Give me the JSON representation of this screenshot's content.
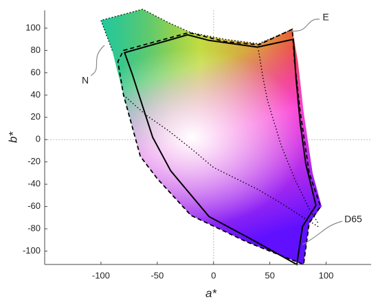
{
  "chart_data": {
    "type": "line",
    "x_label": "a*",
    "y_label": "b*",
    "xlim": [
      -150,
      140
    ],
    "ylim": [
      -112,
      116
    ],
    "xticks": [
      -100,
      -50,
      0,
      50,
      100
    ],
    "yticks": [
      100,
      80,
      60,
      40,
      20,
      0,
      -20,
      -40,
      -60,
      -80,
      -100
    ],
    "zero_lines": true,
    "annotations": [
      "N",
      "E",
      "D65"
    ],
    "series": [
      {
        "style": "fill",
        "closed": true,
        "x": [
          -100,
          -63,
          -40,
          -20,
          10,
          40,
          70,
          75,
          80,
          88,
          96,
          85,
          80,
          30,
          -20,
          -50,
          -65,
          -80,
          -90
        ],
        "values": [
          107,
          117,
          105,
          96,
          90,
          86,
          99,
          70,
          25,
          -30,
          -60,
          -75,
          -112,
          -92,
          -68,
          -35,
          -15,
          40,
          80
        ]
      },
      {
        "style": "dotted",
        "color": "#000",
        "closed": false,
        "x": [
          -90,
          -100,
          -63,
          -40,
          -20,
          10,
          40,
          70
        ],
        "values": [
          80,
          107,
          117,
          105,
          96,
          90,
          86,
          99
        ]
      },
      {
        "style": "dotted",
        "color": "#000",
        "closed": false,
        "x": [
          -80,
          -60,
          -40,
          -20,
          0,
          20,
          40,
          60,
          80,
          93
        ],
        "values": [
          40,
          22,
          8,
          -8,
          -25,
          -35,
          -45,
          -57,
          -70,
          -78
        ]
      },
      {
        "style": "dotted",
        "color": "#000",
        "closed": false,
        "x": [
          40,
          44,
          48,
          60,
          72,
          85,
          93
        ],
        "values": [
          80,
          55,
          35,
          -5,
          -35,
          -62,
          -75
        ]
      },
      {
        "style": "dashed",
        "color": "#000",
        "closed": true,
        "x": [
          -80,
          -22,
          10,
          40,
          70,
          72,
          77,
          85,
          95,
          85,
          80,
          30,
          -20,
          -50,
          -65,
          -80,
          -85
        ],
        "values": [
          80,
          96,
          88,
          85,
          99,
          70,
          25,
          -30,
          -60,
          -75,
          -112,
          -92,
          -68,
          -35,
          -15,
          40,
          70
        ]
      },
      {
        "style": "solid",
        "color": "#000",
        "closed": true,
        "x": [
          -79,
          -23,
          -4,
          39,
          71,
          73,
          77,
          82,
          91,
          79,
          74,
          33,
          -4,
          -38,
          -54,
          -72
        ],
        "values": [
          78,
          94,
          89,
          83,
          90,
          58,
          15,
          -22,
          -59,
          -78,
          -112,
          -89,
          -69,
          -28,
          2,
          58
        ]
      }
    ]
  }
}
